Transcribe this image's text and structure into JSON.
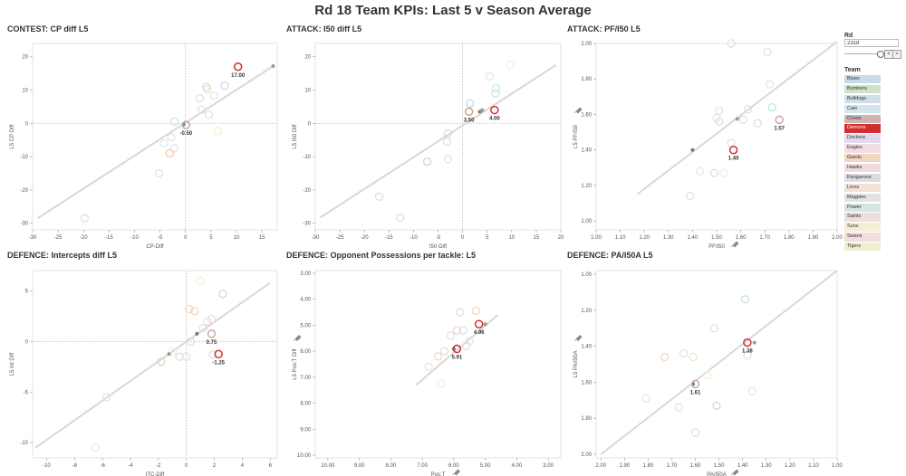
{
  "title": "Rd 18 Team KPIs: Last 5 v Season Average",
  "sidebar": {
    "rd_label": "Rd",
    "rd_value": "2318",
    "prev": "<",
    "next": ">",
    "team_label": "Team",
    "teams": [
      {
        "name": "Blues",
        "color": "#c9dbe8"
      },
      {
        "name": "Bombers",
        "color": "#cfe3c9"
      },
      {
        "name": "Bulldogs",
        "color": "#d2dfe8"
      },
      {
        "name": "Cats",
        "color": "#d3e6ee"
      },
      {
        "name": "Crows",
        "color": "#cdb5b5",
        "highlight": true
      },
      {
        "name": "Demons",
        "color": "#d32f2f",
        "highlight": true
      },
      {
        "name": "Dockers",
        "color": "#e0dced"
      },
      {
        "name": "Eagles",
        "color": "#f2dde3"
      },
      {
        "name": "Giants",
        "color": "#f2d6c0"
      },
      {
        "name": "Hawks",
        "color": "#eddcdb"
      },
      {
        "name": "Kangaroos",
        "color": "#dcdce3"
      },
      {
        "name": "Lions",
        "color": "#f2e1d5"
      },
      {
        "name": "Magpies",
        "color": "#e2e2e2"
      },
      {
        "name": "Power",
        "color": "#d4e6e4"
      },
      {
        "name": "Saints",
        "color": "#ecdede"
      },
      {
        "name": "Suns",
        "color": "#f3eed4"
      },
      {
        "name": "Swans",
        "color": "#f2dcdc"
      },
      {
        "name": "Tigers",
        "color": "#eef0cf"
      }
    ]
  },
  "chart_data": [
    {
      "type": "scatter",
      "title": "CONTEST: CP diff L5",
      "xlabel": "CP-Diff",
      "ylabel": "L5 CP Diff",
      "xlim": [
        -30,
        18
      ],
      "ylim": [
        -32,
        24
      ],
      "xticks": [
        -30,
        -25,
        -20,
        -15,
        -10,
        -5,
        0,
        5,
        10,
        15
      ],
      "xtick_labels": [
        "-30",
        "-25",
        "-20",
        "-15",
        "-10",
        "-5",
        "0",
        "5",
        "10",
        "15"
      ],
      "yticks": [
        -30,
        -20,
        -10,
        0,
        10,
        20
      ],
      "ytick_labels": [
        "-30",
        "-20",
        "-10",
        "0",
        "10",
        "20"
      ],
      "zero_lines": true,
      "trend": [
        [
          -29,
          -28.5
        ],
        [
          17,
          17
        ]
      ],
      "points": [
        {
          "x": 10.3,
          "y": 17.0,
          "color": "#d32f2f",
          "label": "17.00",
          "hl": true
        },
        {
          "x": 0.1,
          "y": -0.5,
          "color": "#c9a9a6",
          "label": "-0.50",
          "hl": true
        },
        {
          "x": -0.4,
          "y": -0.3,
          "dot": "#777"
        },
        {
          "x": 17.2,
          "y": 17.2,
          "dot": "#999"
        },
        {
          "x": -19.8,
          "y": -28.5,
          "color": "#d7e8d7"
        },
        {
          "x": -5.2,
          "y": -15.0,
          "color": "#d7e8d7"
        },
        {
          "x": -2.2,
          "y": -7.5,
          "color": "#e0dcec"
        },
        {
          "x": -4.2,
          "y": -6.0,
          "color": "#d8e6ef"
        },
        {
          "x": -2.8,
          "y": -4.2,
          "color": "#dde5dd"
        },
        {
          "x": -2.1,
          "y": 0.5,
          "color": "#bfe3e3"
        },
        {
          "x": -3.1,
          "y": -9.0,
          "color": "#f0c6a8"
        },
        {
          "x": 2.8,
          "y": 7.5,
          "color": "#cfe6cf"
        },
        {
          "x": 4.3,
          "y": 10.2,
          "color": "#ede6c9"
        },
        {
          "x": 4.1,
          "y": 10.9,
          "color": "#d8d8d8"
        },
        {
          "x": 3.2,
          "y": 4.1,
          "color": "#ddd9ee"
        },
        {
          "x": 4.6,
          "y": 2.6,
          "color": "#e8dede"
        },
        {
          "x": 5.6,
          "y": 8.3,
          "color": "#f2dede"
        },
        {
          "x": 7.7,
          "y": 11.3,
          "color": "#c4d8e8"
        },
        {
          "x": 6.3,
          "y": -2.3,
          "color": "#f3eed3"
        }
      ]
    },
    {
      "type": "scatter",
      "title": "ATTACK: I50 diff L5",
      "xlabel": "I50-Diff",
      "ylabel": "L5 I50 Diff",
      "xlim": [
        -30,
        20
      ],
      "ylim": [
        -32,
        24
      ],
      "xticks": [
        -30,
        -25,
        -20,
        -15,
        -10,
        -5,
        0,
        5,
        10,
        15,
        20
      ],
      "xtick_labels": [
        "-30",
        "-25",
        "-20",
        "-15",
        "-10",
        "-5",
        "0",
        "5",
        "10",
        "15",
        "20"
      ],
      "yticks": [
        -30,
        -20,
        -10,
        0,
        10,
        20
      ],
      "ytick_labels": [
        "-30",
        "-20",
        "-10",
        "0",
        "10",
        "20"
      ],
      "zero_lines": true,
      "trend": [
        [
          -29,
          -28.3
        ],
        [
          19,
          17.5
        ]
      ],
      "points": [
        {
          "x": 6.5,
          "y": 4.0,
          "color": "#d32f2f",
          "label": "4.00",
          "hl": true
        },
        {
          "x": 1.3,
          "y": 3.5,
          "color": "#d3a08a",
          "label": "3.50",
          "hl": true
        },
        {
          "x": 3.5,
          "y": 3.5,
          "dot": "#777"
        },
        {
          "x": 4.0,
          "y": 4.0,
          "dot": "#999"
        },
        {
          "x": -17.0,
          "y": -22.0,
          "color": "#ddd"
        },
        {
          "x": -12.7,
          "y": -28.3,
          "color": "#ddd"
        },
        {
          "x": -7.2,
          "y": -11.5,
          "color": "#bfe0bf"
        },
        {
          "x": -3.0,
          "y": -10.8,
          "color": "#dde5dd"
        },
        {
          "x": -3.2,
          "y": -5.5,
          "color": "#e0dcec"
        },
        {
          "x": -3.0,
          "y": -3.0,
          "color": "#d7d7d7"
        },
        {
          "x": 1.5,
          "y": 6.0,
          "color": "#c4d8e8"
        },
        {
          "x": 5.5,
          "y": 14.0,
          "color": "#f2dede"
        },
        {
          "x": 6.7,
          "y": 9.0,
          "color": "#bfe3e3"
        },
        {
          "x": 6.8,
          "y": 10.5,
          "color": "#cde7e7"
        },
        {
          "x": 9.7,
          "y": 17.5,
          "color": "#f3eed3"
        }
      ]
    },
    {
      "type": "scatter",
      "title": "ATTACK: PF/I50 L5",
      "xlabel": "PF/I50",
      "ylabel": "L5 PF/I50",
      "xlim": [
        1.0,
        2.0
      ],
      "ylim": [
        0.95,
        2.0
      ],
      "xticks": [
        1.0,
        1.1,
        1.2,
        1.3,
        1.4,
        1.5,
        1.6,
        1.7,
        1.8,
        1.9,
        2.0
      ],
      "xtick_labels": [
        "1.00",
        "1.10",
        "1.20",
        "1.30",
        "1.40",
        "1.50",
        "1.60",
        "1.70",
        "1.80",
        "1.90",
        "2.00"
      ],
      "yticks": [
        1.0,
        1.2,
        1.4,
        1.6,
        1.8,
        2.0
      ],
      "ytick_labels": [
        "1.00",
        "1.20",
        "1.40",
        "1.60",
        "1.80",
        "2.00"
      ],
      "pins": true,
      "trend": [
        [
          1.17,
          1.15
        ],
        [
          2.0,
          2.01
        ]
      ],
      "points": [
        {
          "x": 1.57,
          "y": 1.4,
          "color": "#d32f2f",
          "label": "1.40",
          "hl": true
        },
        {
          "x": 1.76,
          "y": 1.57,
          "color": "#c9a9a6",
          "label": "1.57",
          "hl": true
        },
        {
          "x": 1.4,
          "y": 1.4,
          "dot": "#777"
        },
        {
          "x": 1.585,
          "y": 1.575,
          "dot": "#999"
        },
        {
          "x": 1.39,
          "y": 1.14,
          "color": "#dde5dd"
        },
        {
          "x": 1.43,
          "y": 1.28,
          "color": "#e6e6e6"
        },
        {
          "x": 1.49,
          "y": 1.27,
          "color": "#f2d6c0"
        },
        {
          "x": 1.53,
          "y": 1.27,
          "color": "#f3eed3"
        },
        {
          "x": 1.51,
          "y": 1.62,
          "color": "#cde7e7"
        },
        {
          "x": 1.5,
          "y": 1.58,
          "color": "#d8e6ef"
        },
        {
          "x": 1.51,
          "y": 1.56,
          "color": "#ddd"
        },
        {
          "x": 1.56,
          "y": 1.44,
          "color": "#e0dcec"
        },
        {
          "x": 1.61,
          "y": 1.57,
          "color": "#ddd"
        },
        {
          "x": 1.63,
          "y": 1.63,
          "color": "#e0dcec"
        },
        {
          "x": 1.67,
          "y": 1.55,
          "color": "#ddd"
        },
        {
          "x": 1.56,
          "y": 2.0,
          "color": "#ddd"
        },
        {
          "x": 1.71,
          "y": 1.95,
          "color": "#ddd"
        },
        {
          "x": 1.72,
          "y": 1.77,
          "color": "#ede6c9"
        },
        {
          "x": 1.73,
          "y": 1.64,
          "color": "#bfe3e3"
        }
      ]
    },
    {
      "type": "scatter",
      "title": "DEFENCE: Intercepts diff L5",
      "xlabel": "ITC-Diff",
      "ylabel": "L5 Int Diff",
      "xlim": [
        -11,
        6.5
      ],
      "ylim": [
        -11.5,
        7
      ],
      "xticks": [
        -10,
        -8,
        -6,
        -4,
        -2,
        0,
        2,
        4,
        6
      ],
      "xtick_labels": [
        "-10",
        "-8",
        "-6",
        "-4",
        "-2",
        "0",
        "2",
        "4",
        "6"
      ],
      "yticks": [
        -10,
        -5,
        0,
        5
      ],
      "ytick_labels": [
        "-10",
        "-5",
        "0",
        "5"
      ],
      "zero_lines": true,
      "trend": [
        [
          -10.8,
          -10.5
        ],
        [
          6,
          5.8
        ]
      ],
      "points": [
        {
          "x": 2.3,
          "y": -1.25,
          "color": "#d32f2f",
          "label": "-1.25",
          "hl": true
        },
        {
          "x": 1.8,
          "y": 0.75,
          "color": "#c9a9a6",
          "label": "0.75",
          "hl": true
        },
        {
          "x": 0.75,
          "y": 0.75,
          "dot": "#777"
        },
        {
          "x": -1.25,
          "y": -1.25,
          "dot": "#999"
        },
        {
          "x": -6.5,
          "y": -10.5,
          "color": "#e6e6e6"
        },
        {
          "x": -5.7,
          "y": -5.5,
          "color": "#dde5dd"
        },
        {
          "x": -1.8,
          "y": -2.0,
          "color": "#bfe0bf"
        },
        {
          "x": -1.0,
          "y": -1.0,
          "color": "#f3eed3"
        },
        {
          "x": -0.5,
          "y": -1.5,
          "color": "#e0dcec"
        },
        {
          "x": 0.0,
          "y": -1.5,
          "color": "#dde5dd"
        },
        {
          "x": 0.3,
          "y": 0.0,
          "color": "#ddd"
        },
        {
          "x": 0.2,
          "y": 3.2,
          "color": "#f2d6c0"
        },
        {
          "x": 0.6,
          "y": 3.0,
          "color": "#f2d6c0"
        },
        {
          "x": 1.0,
          "y": 6.0,
          "color": "#f3eed3"
        },
        {
          "x": 1.2,
          "y": 1.3,
          "color": "#ddd"
        },
        {
          "x": 1.5,
          "y": 2.0,
          "color": "#f2dede"
        },
        {
          "x": 1.8,
          "y": 2.2,
          "color": "#ddd"
        },
        {
          "x": 1.9,
          "y": -1.3,
          "color": "#ddd"
        },
        {
          "x": 2.6,
          "y": 4.7,
          "color": "#c4d8e8"
        }
      ]
    },
    {
      "type": "scatter",
      "title": "DEFENCE: Opponent Possessions per tackle: L5",
      "xlabel": "Pos:T",
      "ylabel": "L5 Pos:T Diff",
      "xlim": [
        10.4,
        2.6
      ],
      "ylim": [
        10.1,
        2.9
      ],
      "xticks": [
        10,
        9,
        8,
        7,
        6,
        5,
        4,
        3
      ],
      "xtick_labels": [
        "10.00",
        "9.00",
        "8.00",
        "7.00",
        "6.00",
        "5.00",
        "4.00",
        "3.00"
      ],
      "yticks": [
        3,
        4,
        5,
        6,
        7,
        8,
        9,
        10
      ],
      "ytick_labels": [
        "3.00",
        "4.00",
        "5.00",
        "6.00",
        "7.00",
        "8.00",
        "9.00",
        "10.00"
      ],
      "pins": true,
      "trend": [
        [
          7.2,
          7.3
        ],
        [
          4.6,
          4.6
        ]
      ],
      "points": [
        {
          "x": 5.2,
          "y": 4.96,
          "color": "#d32f2f",
          "label": "4.96",
          "hl": true
        },
        {
          "x": 5.9,
          "y": 5.91,
          "color": "#d32f2f",
          "label": "5.91",
          "hl": true
        },
        {
          "x": 6.0,
          "y": 5.91,
          "dot": "#777"
        },
        {
          "x": 5.0,
          "y": 4.96,
          "dot": "#999"
        },
        {
          "x": 6.8,
          "y": 6.6,
          "color": "#e6e6e6"
        },
        {
          "x": 6.5,
          "y": 6.2,
          "color": "#f2d6c0"
        },
        {
          "x": 6.3,
          "y": 6.0,
          "color": "#ddd"
        },
        {
          "x": 6.4,
          "y": 7.25,
          "color": "#f3eed3"
        },
        {
          "x": 6.1,
          "y": 5.4,
          "color": "#ddd"
        },
        {
          "x": 5.9,
          "y": 5.2,
          "color": "#f2d6c0"
        },
        {
          "x": 5.8,
          "y": 4.5,
          "color": "#ddd"
        },
        {
          "x": 5.7,
          "y": 5.2,
          "color": "#e0dcec"
        },
        {
          "x": 5.6,
          "y": 5.8,
          "color": "#ddd"
        },
        {
          "x": 5.3,
          "y": 4.45,
          "color": "#f2d6c0"
        },
        {
          "x": 5.5,
          "y": 5.6,
          "color": "#d8e6ef"
        }
      ]
    },
    {
      "type": "scatter",
      "title": "DEFENCE: PA/I50A L5",
      "xlabel": "PA/I50A",
      "ylabel": "L5 PA/I50A",
      "xlim": [
        2.02,
        1.0
      ],
      "ylim": [
        2.02,
        0.98
      ],
      "xticks": [
        2.0,
        1.9,
        1.8,
        1.7,
        1.6,
        1.5,
        1.4,
        1.3,
        1.2,
        1.1,
        1.0
      ],
      "xtick_labels": [
        "2.00",
        "1.90",
        "1.80",
        "1.70",
        "1.60",
        "1.50",
        "1.40",
        "1.30",
        "1.20",
        "1.10",
        "1.00"
      ],
      "yticks": [
        1.0,
        1.2,
        1.4,
        1.6,
        1.8,
        2.0
      ],
      "ytick_labels": [
        "1.00",
        "1.20",
        "1.40",
        "1.60",
        "1.80",
        "2.00"
      ],
      "pins": true,
      "trend": [
        [
          2.0,
          2.0
        ],
        [
          1.0,
          0.98
        ]
      ],
      "points": [
        {
          "x": 1.38,
          "y": 1.38,
          "color": "#d32f2f",
          "label": "1.38",
          "hl": true
        },
        {
          "x": 1.6,
          "y": 1.61,
          "color": "#c9a9a6",
          "label": "1.61",
          "hl": true
        },
        {
          "x": 1.61,
          "y": 1.61,
          "dot": "#777"
        },
        {
          "x": 1.35,
          "y": 1.38,
          "dot": "#999"
        },
        {
          "x": 1.81,
          "y": 1.69,
          "color": "#e6e6e6"
        },
        {
          "x": 1.73,
          "y": 1.46,
          "color": "#f2d6c0"
        },
        {
          "x": 1.65,
          "y": 1.44,
          "color": "#cde7e7"
        },
        {
          "x": 1.61,
          "y": 1.46,
          "color": "#ede6c9"
        },
        {
          "x": 1.67,
          "y": 1.74,
          "color": "#e0dcec"
        },
        {
          "x": 1.55,
          "y": 1.56,
          "color": "#f3eed3"
        },
        {
          "x": 1.52,
          "y": 1.3,
          "color": "#ddd"
        },
        {
          "x": 1.51,
          "y": 1.73,
          "color": "#bfe0bf"
        },
        {
          "x": 1.6,
          "y": 1.88,
          "color": "#ddd"
        },
        {
          "x": 1.39,
          "y": 1.14,
          "color": "#c4d8e8"
        },
        {
          "x": 1.38,
          "y": 1.45,
          "color": "#ddd"
        },
        {
          "x": 1.36,
          "y": 1.65,
          "color": "#dde5dd"
        }
      ]
    }
  ]
}
